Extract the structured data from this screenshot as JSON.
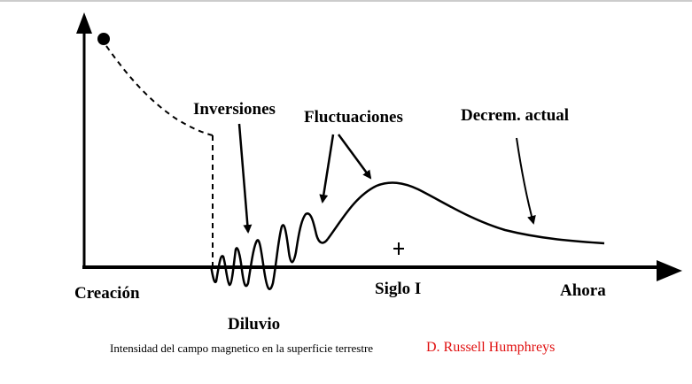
{
  "labels": {
    "inversiones": "Inversiones",
    "fluctuaciones": "Fluctuaciones",
    "decremento": "Decrem. actual",
    "creacion": "Creación",
    "siglo": "Siglo I",
    "ahora": "Ahora",
    "diluvio": "Diluvio"
  },
  "caption": "Intensidad del campo magnetico en la superficie terrestre",
  "author": "D. Russell Humphreys",
  "colors": {
    "ink": "#000000",
    "author": "#e01010"
  }
}
